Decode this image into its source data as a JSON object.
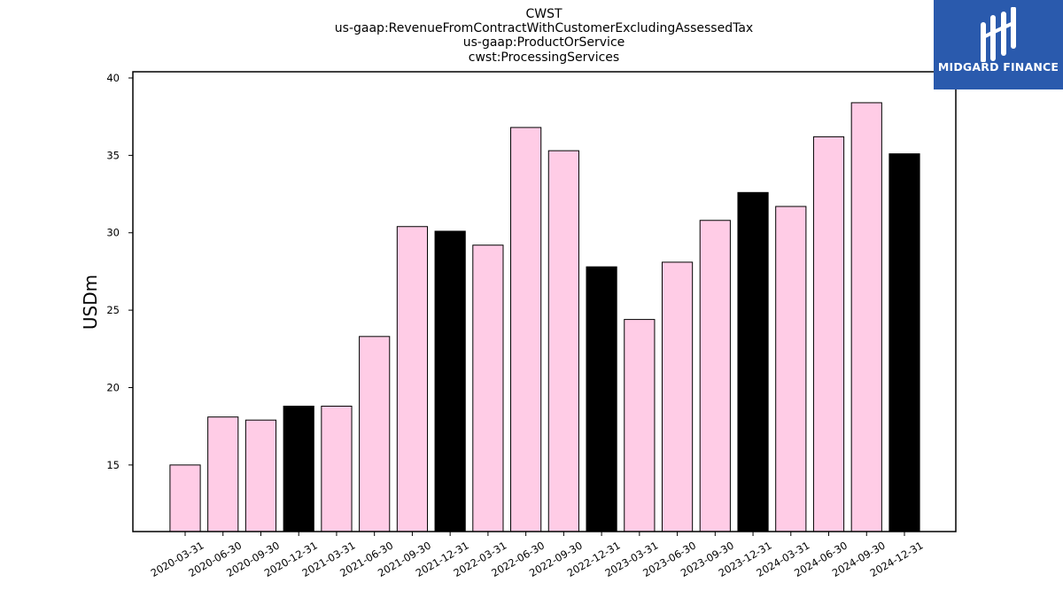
{
  "title_lines": [
    "CWST",
    "us-gaap:RevenueFromContractWithCustomerExcludingAssessedTax",
    "us-gaap:ProductOrService",
    "cwst:ProcessingServices"
  ],
  "logo": {
    "text": "MIDGARD FINANCE",
    "color": "#2a5aad",
    "icon": "midgard-logo-icon"
  },
  "colors": {
    "quarter": "#ffcce6",
    "year_end": "#000000",
    "edge": "#000000"
  },
  "chart_data": {
    "type": "bar",
    "title": "CWST\nus-gaap:RevenueFromContractWithCustomerExcludingAssessedTax\nus-gaap:ProductOrService\ncwst:ProcessingServices",
    "xlabel": "",
    "ylabel": "USDm",
    "ylim": [
      10.7,
      40.4
    ],
    "yticks": [
      15,
      20,
      25,
      30,
      35,
      40
    ],
    "grid": false,
    "categories": [
      "2020-03-31",
      "2020-06-30",
      "2020-09-30",
      "2020-12-31",
      "2021-03-31",
      "2021-06-30",
      "2021-09-30",
      "2021-12-31",
      "2022-03-31",
      "2022-06-30",
      "2022-09-30",
      "2022-12-31",
      "2023-03-31",
      "2023-06-30",
      "2023-09-30",
      "2023-12-31",
      "2024-03-31",
      "2024-06-30",
      "2024-09-30",
      "2024-12-31"
    ],
    "values": [
      15.0,
      18.1,
      17.9,
      18.8,
      18.8,
      23.3,
      30.4,
      30.1,
      29.2,
      36.8,
      35.3,
      27.8,
      24.4,
      28.1,
      30.8,
      32.6,
      31.7,
      36.2,
      38.4,
      35.1
    ]
  }
}
